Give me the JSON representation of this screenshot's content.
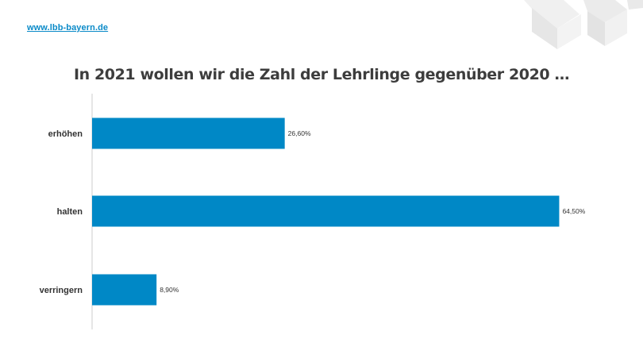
{
  "header": {
    "site_link": "www.lbb-bayern.de"
  },
  "colors": {
    "bar": "#0088c6",
    "link": "#0a8ac8",
    "axis": "#cccccc",
    "deco": "#eeeeee"
  },
  "chart_data": {
    "type": "bar",
    "orientation": "horizontal",
    "title": "In 2021 wollen wir die Zahl der Lehrlinge gegenüber 2020 …",
    "categories": [
      "erhöhen",
      "halten",
      "verringern"
    ],
    "values": [
      26.6,
      64.5,
      8.9
    ],
    "value_labels": [
      "26,60%",
      "64,50%",
      "8,90%"
    ],
    "unit": "%",
    "xlim": [
      0,
      65
    ],
    "grid": false,
    "legend": "none"
  }
}
